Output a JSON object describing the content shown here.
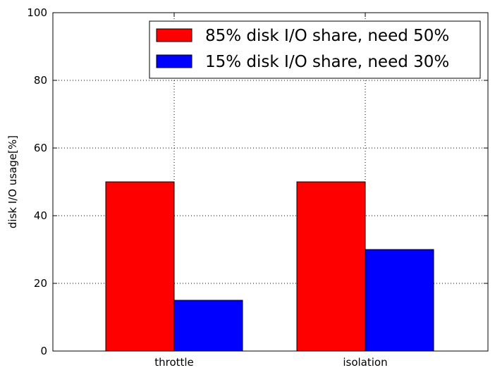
{
  "chart_data": {
    "type": "bar",
    "categories": [
      "throttle",
      "isolation"
    ],
    "series": [
      {
        "name": "85% disk I/O share, need 50%",
        "values": [
          50,
          50
        ],
        "color": "#ff0000"
      },
      {
        "name": "15% disk I/O share, need 30%",
        "values": [
          15,
          30
        ],
        "color": "#0000ff"
      }
    ],
    "xlabel": "",
    "ylabel": "disk I/O usage[%]",
    "ylim": [
      0,
      100
    ],
    "yticks": [
      0,
      20,
      40,
      60,
      80,
      100
    ],
    "grid": true,
    "legend_position": "top-right"
  }
}
